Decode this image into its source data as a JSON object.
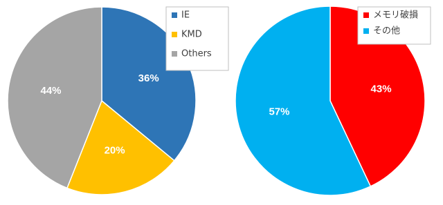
{
  "chart_data": [
    {
      "type": "pie",
      "categories": [
        "IE",
        "KMD",
        "Others"
      ],
      "values": [
        36,
        20,
        44
      ],
      "value_labels": [
        "36%",
        "20%",
        "44%"
      ],
      "colors": [
        "#2e75b6",
        "#ffc000",
        "#a5a5a5"
      ]
    },
    {
      "type": "pie",
      "categories": [
        "メモリ破損",
        "その他"
      ],
      "values": [
        43,
        57
      ],
      "value_labels": [
        "43%",
        "57%"
      ],
      "colors": [
        "#ff0000",
        "#00b0f0"
      ]
    }
  ]
}
